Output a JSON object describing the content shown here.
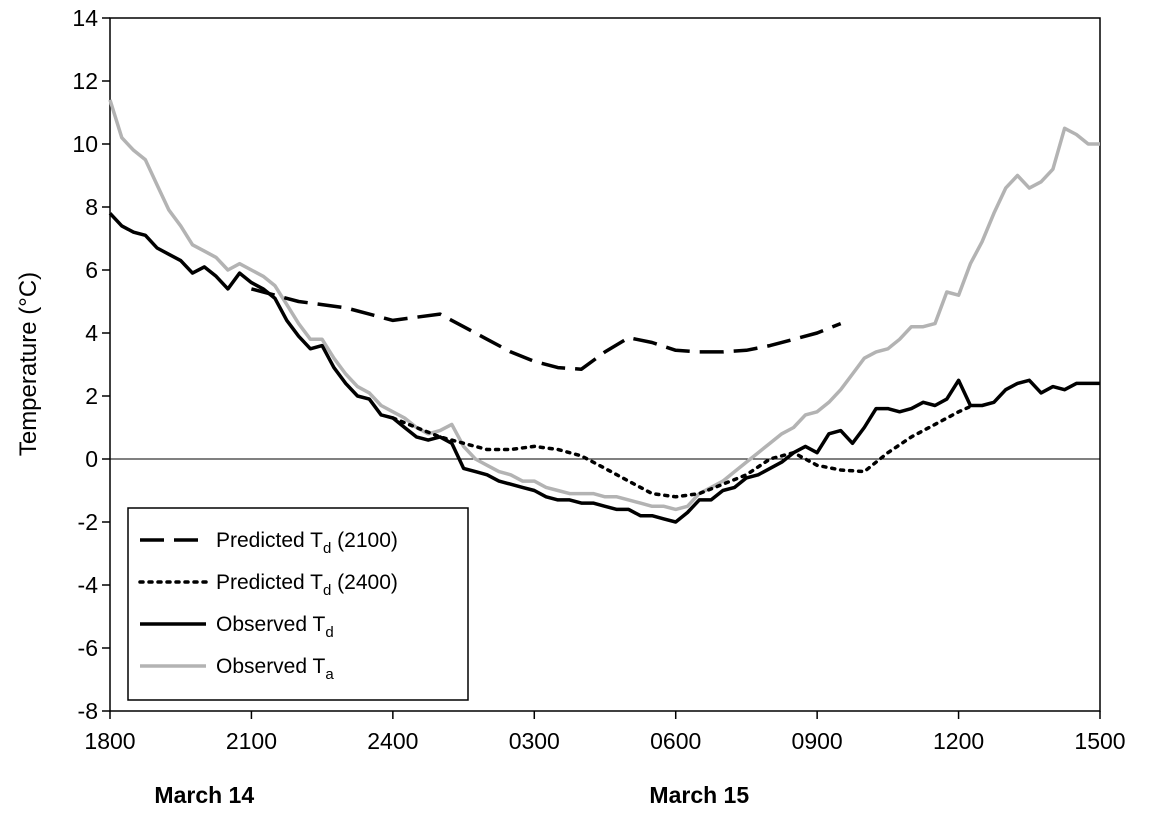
{
  "chart_data": {
    "type": "line",
    "ylabel": "Temperature (°C)",
    "xlabel": "",
    "ylim": [
      -8,
      14
    ],
    "y_ticks": [
      -8,
      -6,
      -4,
      -2,
      0,
      2,
      4,
      6,
      8,
      10,
      12,
      14
    ],
    "x_range_hours": [
      0,
      21
    ],
    "x_ticks": [
      {
        "h": 0,
        "label": "1800"
      },
      {
        "h": 3,
        "label": "2100"
      },
      {
        "h": 6,
        "label": "2400"
      },
      {
        "h": 9,
        "label": "0300"
      },
      {
        "h": 12,
        "label": "0600"
      },
      {
        "h": 15,
        "label": "0900"
      },
      {
        "h": 18,
        "label": "1200"
      },
      {
        "h": 21,
        "label": "1500"
      }
    ],
    "date_labels": [
      {
        "h": 2.0,
        "label": "March 14"
      },
      {
        "h": 12.5,
        "label": "March 15"
      }
    ],
    "grid": false,
    "reference_line_y": 0,
    "legend_position": "bottom-left",
    "series": [
      {
        "name": "Predicted T",
        "subscript": "d",
        "suffix": " (2100)",
        "color": "#000000",
        "dash": "24,10",
        "x": [
          3.0,
          3.5,
          4.0,
          4.5,
          5.0,
          5.5,
          6.0,
          6.5,
          7.0,
          7.5,
          8.0,
          8.5,
          9.0,
          9.5,
          10.0,
          10.5,
          11.0,
          11.5,
          12.0,
          12.5,
          13.0,
          13.5,
          14.0,
          14.5,
          15.0,
          15.5
        ],
        "y": [
          5.4,
          5.2,
          5.0,
          4.9,
          4.8,
          4.6,
          4.4,
          4.5,
          4.6,
          4.2,
          3.8,
          3.4,
          3.1,
          2.9,
          2.85,
          3.4,
          3.85,
          3.7,
          3.45,
          3.4,
          3.4,
          3.45,
          3.6,
          3.8,
          4.0,
          4.3
        ]
      },
      {
        "name": "Predicted T",
        "subscript": "d",
        "suffix": " (2400)",
        "color": "#000000",
        "dash": "3,6",
        "x": [
          6.0,
          6.5,
          7.0,
          7.5,
          8.0,
          8.5,
          9.0,
          9.5,
          10.0,
          10.5,
          11.0,
          11.5,
          12.0,
          12.5,
          13.0,
          13.5,
          14.0,
          14.5,
          15.0,
          15.5,
          16.0,
          16.5,
          17.0,
          17.5,
          18.0,
          18.3
        ],
        "y": [
          1.3,
          1.0,
          0.7,
          0.5,
          0.3,
          0.3,
          0.4,
          0.3,
          0.1,
          -0.3,
          -0.7,
          -1.1,
          -1.2,
          -1.1,
          -0.8,
          -0.5,
          0.0,
          0.2,
          -0.2,
          -0.35,
          -0.4,
          0.2,
          0.7,
          1.1,
          1.5,
          1.7
        ]
      },
      {
        "name": "Observed T",
        "subscript": "d",
        "suffix": "",
        "color": "#000000",
        "dash": "",
        "x": [
          0,
          0.25,
          0.5,
          0.75,
          1.0,
          1.25,
          1.5,
          1.75,
          2.0,
          2.25,
          2.5,
          2.75,
          3.0,
          3.25,
          3.5,
          3.75,
          4.0,
          4.25,
          4.5,
          4.75,
          5.0,
          5.25,
          5.5,
          5.75,
          6.0,
          6.25,
          6.5,
          6.75,
          7.0,
          7.25,
          7.5,
          7.75,
          8.0,
          8.25,
          8.5,
          8.75,
          9.0,
          9.25,
          9.5,
          9.75,
          10.0,
          10.25,
          10.5,
          10.75,
          11.0,
          11.25,
          11.5,
          11.75,
          12.0,
          12.25,
          12.5,
          12.75,
          13.0,
          13.25,
          13.5,
          13.75,
          14.0,
          14.25,
          14.5,
          14.75,
          15.0,
          15.25,
          15.5,
          15.75,
          16.0,
          16.25,
          16.5,
          16.75,
          17.0,
          17.25,
          17.5,
          17.75,
          18.0,
          18.25,
          18.5,
          18.75,
          19.0,
          19.25,
          19.5,
          19.75,
          20.0,
          20.25,
          20.5,
          20.75,
          21.0
        ],
        "y": [
          7.8,
          7.4,
          7.2,
          7.1,
          6.7,
          6.5,
          6.3,
          5.9,
          6.1,
          5.8,
          5.4,
          5.9,
          5.6,
          5.4,
          5.1,
          4.4,
          3.9,
          3.5,
          3.6,
          2.9,
          2.4,
          2.0,
          1.9,
          1.4,
          1.3,
          1.0,
          0.7,
          0.6,
          0.7,
          0.5,
          -0.3,
          -0.4,
          -0.5,
          -0.7,
          -0.8,
          -0.9,
          -1.0,
          -1.2,
          -1.3,
          -1.3,
          -1.4,
          -1.4,
          -1.5,
          -1.6,
          -1.6,
          -1.8,
          -1.8,
          -1.9,
          -2.0,
          -1.7,
          -1.3,
          -1.3,
          -1.0,
          -0.9,
          -0.6,
          -0.5,
          -0.3,
          -0.1,
          0.2,
          0.4,
          0.2,
          0.8,
          0.9,
          0.5,
          1.0,
          1.6,
          1.6,
          1.5,
          1.6,
          1.8,
          1.7,
          1.9,
          2.5,
          1.7,
          1.7,
          1.8,
          2.2,
          2.4,
          2.5,
          2.1,
          2.3,
          2.2,
          2.4,
          2.4,
          2.4
        ]
      },
      {
        "name": "Observed T",
        "subscript": "a",
        "suffix": "",
        "color": "#b3b3b3",
        "dash": "",
        "x": [
          0,
          0.25,
          0.5,
          0.75,
          1.0,
          1.25,
          1.5,
          1.75,
          2.0,
          2.25,
          2.5,
          2.75,
          3.0,
          3.25,
          3.5,
          3.75,
          4.0,
          4.25,
          4.5,
          4.75,
          5.0,
          5.25,
          5.5,
          5.75,
          6.0,
          6.25,
          6.5,
          6.75,
          7.0,
          7.25,
          7.5,
          7.75,
          8.0,
          8.25,
          8.5,
          8.75,
          9.0,
          9.25,
          9.5,
          9.75,
          10.0,
          10.25,
          10.5,
          10.75,
          11.0,
          11.25,
          11.5,
          11.75,
          12.0,
          12.25,
          12.5,
          12.75,
          13.0,
          13.25,
          13.5,
          13.75,
          14.0,
          14.25,
          14.5,
          14.75,
          15.0,
          15.25,
          15.5,
          15.75,
          16.0,
          16.25,
          16.5,
          16.75,
          17.0,
          17.25,
          17.5,
          17.75,
          18.0,
          18.25,
          18.5,
          18.75,
          19.0,
          19.25,
          19.5,
          19.75,
          20.0,
          20.25,
          20.5,
          20.75,
          21.0
        ],
        "y": [
          11.4,
          10.2,
          9.8,
          9.5,
          8.7,
          7.9,
          7.4,
          6.8,
          6.6,
          6.4,
          6.0,
          6.2,
          6.0,
          5.8,
          5.5,
          4.9,
          4.3,
          3.8,
          3.8,
          3.2,
          2.7,
          2.3,
          2.1,
          1.7,
          1.5,
          1.3,
          1.0,
          0.8,
          0.9,
          1.1,
          0.4,
          0.0,
          -0.2,
          -0.4,
          -0.5,
          -0.7,
          -0.7,
          -0.9,
          -1.0,
          -1.1,
          -1.1,
          -1.1,
          -1.2,
          -1.2,
          -1.3,
          -1.4,
          -1.5,
          -1.5,
          -1.6,
          -1.5,
          -1.1,
          -0.9,
          -0.7,
          -0.4,
          -0.1,
          0.2,
          0.5,
          0.8,
          1.0,
          1.4,
          1.5,
          1.8,
          2.2,
          2.7,
          3.2,
          3.4,
          3.5,
          3.8,
          4.2,
          4.2,
          4.3,
          5.3,
          5.2,
          6.2,
          6.9,
          7.8,
          8.6,
          9.0,
          8.6,
          8.8,
          9.2,
          10.5,
          10.3,
          10.0,
          10.0
        ]
      }
    ]
  }
}
